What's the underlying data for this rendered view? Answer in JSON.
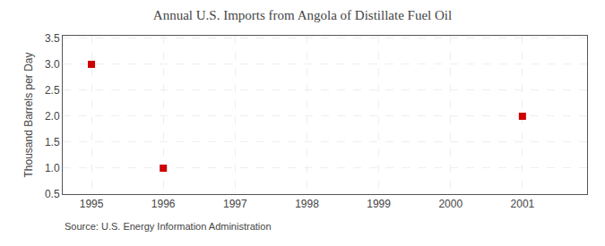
{
  "chart_data": {
    "type": "scatter",
    "title": "Annual U.S. Imports from Angola of Distillate Fuel Oil",
    "ylabel": "Thousand Barrels per Day",
    "annotations": [
      "Source: U.S. Energy Information Administration"
    ],
    "x": [
      1995,
      1996,
      2001
    ],
    "values": [
      3.0,
      1.0,
      2.0
    ],
    "color": "#cc0000",
    "marker": "square",
    "xlim": [
      1994.6,
      2001.9
    ],
    "xticks": [
      1995,
      1996,
      1997,
      1998,
      1999,
      2000,
      2001
    ],
    "ylim": [
      0.5,
      3.55
    ],
    "yticks": [
      0.5,
      {
        "value": 1.0,
        "label": "1.0"
      },
      1.5,
      {
        "value": 2.0,
        "label": "2.0"
      },
      2.5,
      {
        "value": 3.0,
        "label": "3.0"
      },
      3.5
    ],
    "grid": true
  }
}
